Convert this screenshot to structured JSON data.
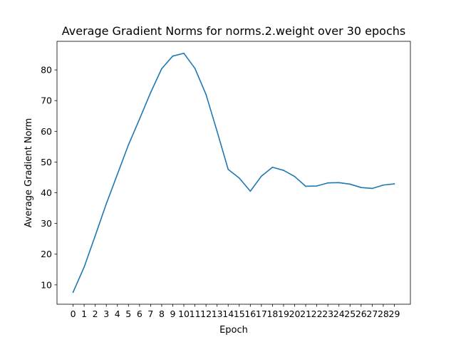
{
  "chart_data": {
    "type": "line",
    "title": "Average Gradient Norms for norms.2.weight over 30 epochs",
    "xlabel": "Epoch",
    "ylabel": "Average Gradient Norm",
    "x": [
      0,
      1,
      2,
      3,
      4,
      5,
      6,
      7,
      8,
      9,
      10,
      11,
      12,
      13,
      14,
      15,
      16,
      17,
      18,
      19,
      20,
      21,
      22,
      23,
      24,
      25,
      26,
      27,
      28,
      29
    ],
    "series": [
      {
        "values": [
          7.6,
          15.8,
          26.0,
          36.4,
          46.0,
          55.6,
          64.0,
          72.6,
          80.4,
          84.5,
          85.4,
          80.5,
          72.0,
          60.0,
          47.6,
          44.8,
          40.5,
          45.4,
          48.3,
          47.3,
          45.3,
          42.1,
          42.2,
          43.2,
          43.3,
          42.8,
          41.7,
          41.4,
          42.5,
          42.9
        ],
        "color": "#1f77b4"
      }
    ],
    "xticks": [
      "0",
      "1",
      "2",
      "3",
      "4",
      "5",
      "6",
      "7",
      "8",
      "9",
      "10",
      "11",
      "12",
      "13",
      "14",
      "15",
      "16",
      "17",
      "18",
      "19",
      "20",
      "21",
      "22",
      "23",
      "24",
      "25",
      "26",
      "27",
      "28",
      "29"
    ],
    "yticks": [
      10,
      20,
      30,
      40,
      50,
      60,
      70,
      80
    ],
    "xlim": [
      -1.45,
      30.45
    ],
    "ylim": [
      3.7,
      89.3
    ],
    "grid": false,
    "legend": "none"
  }
}
